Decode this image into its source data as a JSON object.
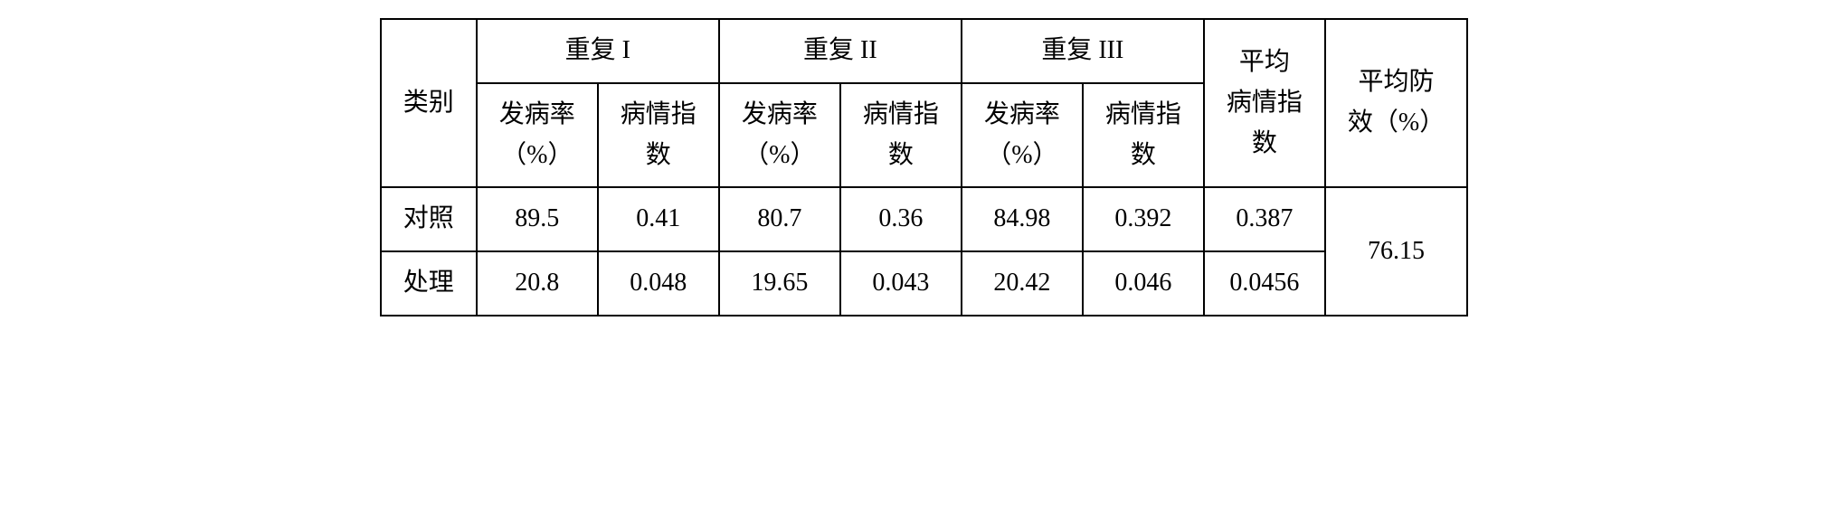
{
  "table": {
    "type": "table",
    "border_color": "#000000",
    "background_color": "#ffffff",
    "text_color": "#000000",
    "font_family": "SimSun",
    "font_size_pt": 21,
    "header": {
      "category": "类别",
      "repeat1": "重复 I",
      "repeat2": "重复 II",
      "repeat3": "重复 III",
      "avg_index": "平均\n病情指\n数",
      "avg_effect": "平均防\n效（%）",
      "incidence": "发病率\n（%）",
      "disease_index": "病情指\n数"
    },
    "rows": [
      {
        "category": "对照",
        "r1_incidence": "89.5",
        "r1_index": "0.41",
        "r2_incidence": "80.7",
        "r2_index": "0.36",
        "r3_incidence": "84.98",
        "r3_index": "0.392",
        "avg_index": "0.387"
      },
      {
        "category": "处理",
        "r1_incidence": "20.8",
        "r1_index": "0.048",
        "r2_incidence": "19.65",
        "r2_index": "0.043",
        "r3_incidence": "20.42",
        "r3_index": "0.046",
        "avg_index": "0.0456"
      }
    ],
    "avg_effect_value": "76.15"
  }
}
